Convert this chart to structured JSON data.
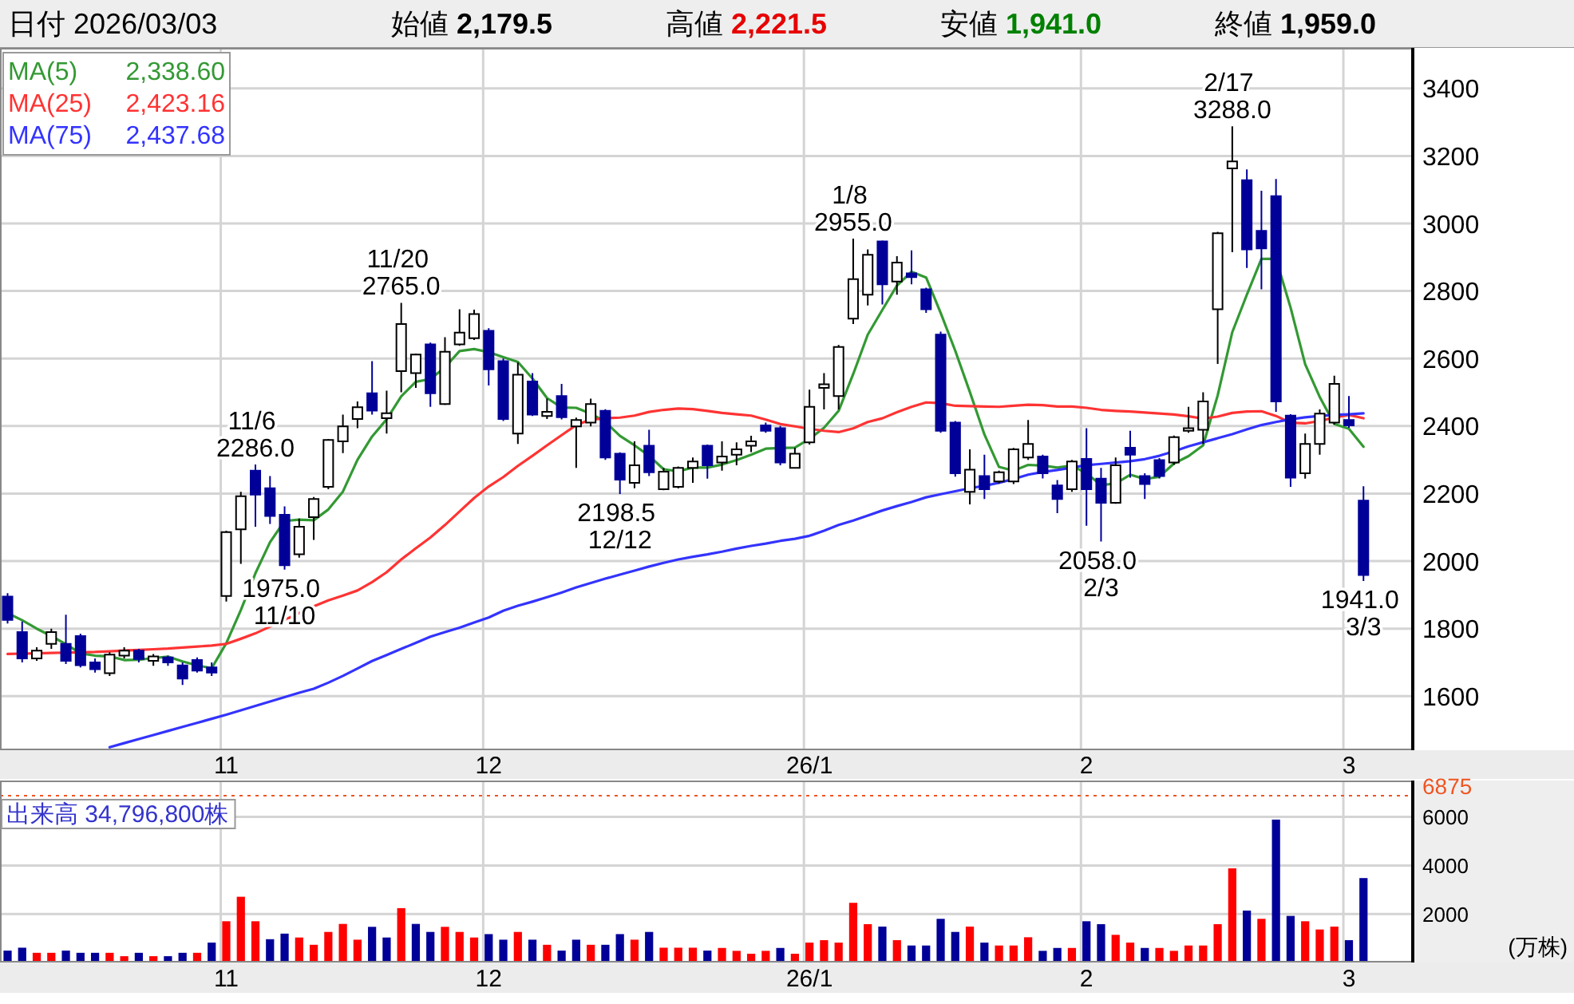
{
  "chart_data": [
    {
      "type": "candlestick",
      "title": "日付 2026/03/03",
      "categories": [
        null,
        null,
        null,
        null,
        null,
        null,
        null,
        null,
        null,
        null,
        null,
        null,
        null,
        null,
        null,
        "11",
        null,
        null,
        null,
        null,
        null,
        null,
        null,
        null,
        null,
        null,
        null,
        null,
        null,
        null,
        null,
        null,
        null,
        "12",
        null,
        null,
        null,
        null,
        null,
        null,
        null,
        null,
        null,
        null,
        null,
        null,
        null,
        null,
        null,
        null,
        null,
        null,
        null,
        null,
        null,
        "26/1",
        null,
        null,
        null,
        null,
        null,
        null,
        null,
        null,
        null,
        null,
        null,
        null,
        null,
        null,
        null,
        null,
        null,
        null,
        "2",
        null,
        null,
        null,
        null,
        null,
        null,
        null,
        null,
        null,
        null,
        null,
        null,
        null,
        null,
        null,
        null,
        null,
        "3",
        null
      ],
      "ohlc": [
        [
          1895,
          1905,
          1815,
          1826
        ],
        [
          1790,
          1821,
          1700,
          1712
        ],
        [
          1712,
          1745,
          1705,
          1735
        ],
        [
          1755,
          1800,
          1740,
          1790
        ],
        [
          1755,
          1841,
          1695,
          1705
        ],
        [
          1778,
          1785,
          1685,
          1692
        ],
        [
          1700,
          1712,
          1670,
          1680
        ],
        [
          1668,
          1730,
          1660,
          1723
        ],
        [
          1720,
          1745,
          1712,
          1735
        ],
        [
          1735,
          1740,
          1700,
          1710
        ],
        [
          1705,
          1725,
          1690,
          1718
        ],
        [
          1715,
          1720,
          1690,
          1700
        ],
        [
          1691,
          1700,
          1633,
          1652
        ],
        [
          1707,
          1715,
          1670,
          1676
        ],
        [
          1685,
          1700,
          1660,
          1670
        ],
        [
          1897,
          2090,
          1880,
          2086
        ],
        [
          2094,
          2205,
          1992,
          2192
        ],
        [
          2268,
          2286,
          2102,
          2197
        ],
        [
          2216,
          2252,
          2110,
          2134
        ],
        [
          2137,
          2162,
          1975,
          1988
        ],
        [
          2020,
          2126,
          2010,
          2102
        ],
        [
          2130,
          2190,
          2063,
          2184
        ],
        [
          2220,
          2362,
          2213,
          2359
        ],
        [
          2355,
          2434,
          2320,
          2399
        ],
        [
          2421,
          2473,
          2394,
          2456
        ],
        [
          2497,
          2592,
          2434,
          2446
        ],
        [
          2423,
          2505,
          2378,
          2438
        ],
        [
          2563,
          2765,
          2500,
          2702
        ],
        [
          2557,
          2615,
          2513,
          2612
        ],
        [
          2642,
          2647,
          2457,
          2497
        ],
        [
          2465,
          2663,
          2462,
          2620
        ],
        [
          2642,
          2746,
          2638,
          2677
        ],
        [
          2660,
          2745,
          2655,
          2732
        ],
        [
          2682,
          2690,
          2520,
          2568
        ],
        [
          2592,
          2600,
          2415,
          2421
        ],
        [
          2378,
          2588,
          2347,
          2552
        ],
        [
          2532,
          2557,
          2430,
          2434
        ],
        [
          2430,
          2481,
          2421,
          2442
        ],
        [
          2489,
          2525,
          2420,
          2426
        ],
        [
          2399,
          2425,
          2276,
          2418
        ],
        [
          2410,
          2481,
          2399,
          2465
        ],
        [
          2445,
          2450,
          2300,
          2307
        ],
        [
          2318,
          2322,
          2198.5,
          2241
        ],
        [
          2232,
          2355,
          2216,
          2284
        ],
        [
          2342,
          2389,
          2252,
          2263
        ],
        [
          2213,
          2276,
          2210,
          2265
        ],
        [
          2220,
          2280,
          2215,
          2276
        ],
        [
          2276,
          2307,
          2232,
          2295
        ],
        [
          2342,
          2345,
          2244,
          2284
        ],
        [
          2292,
          2355,
          2268,
          2310
        ],
        [
          2315,
          2352,
          2284,
          2331
        ],
        [
          2342,
          2371,
          2323,
          2355
        ],
        [
          2402,
          2410,
          2380,
          2386
        ],
        [
          2394,
          2400,
          2284,
          2292
        ],
        [
          2276,
          2336,
          2274,
          2318
        ],
        [
          2352,
          2508,
          2345,
          2457
        ],
        [
          2513,
          2557,
          2449,
          2524
        ],
        [
          2489,
          2640,
          2449,
          2634
        ],
        [
          2718,
          2955,
          2702,
          2835
        ],
        [
          2789,
          2923,
          2757,
          2907
        ],
        [
          2947,
          2950,
          2760,
          2820
        ],
        [
          2828,
          2903,
          2789,
          2884
        ],
        [
          2852,
          2920,
          2820,
          2841
        ],
        [
          2805,
          2810,
          2735,
          2746
        ],
        [
          2671,
          2680,
          2380,
          2386
        ],
        [
          2410,
          2415,
          2250,
          2260
        ],
        [
          2205,
          2331,
          2168,
          2271
        ],
        [
          2252,
          2315,
          2184,
          2213
        ],
        [
          2236,
          2268,
          2230,
          2263
        ],
        [
          2236,
          2335,
          2228,
          2331
        ],
        [
          2307,
          2418,
          2300,
          2347
        ],
        [
          2310,
          2315,
          2245,
          2260
        ],
        [
          2224,
          2240,
          2142,
          2184
        ],
        [
          2213,
          2300,
          2205,
          2295
        ],
        [
          2303,
          2394,
          2105,
          2213
        ],
        [
          2244,
          2276,
          2058,
          2173
        ],
        [
          2173,
          2307,
          2170,
          2284
        ],
        [
          2336,
          2386,
          2247,
          2315
        ],
        [
          2252,
          2260,
          2184,
          2228
        ],
        [
          2299,
          2305,
          2245,
          2252
        ],
        [
          2292,
          2372,
          2285,
          2367
        ],
        [
          2386,
          2457,
          2380,
          2394
        ],
        [
          2389,
          2500,
          2347,
          2473
        ],
        [
          2746,
          2975,
          2584,
          2971
        ],
        [
          3163,
          3288,
          2915,
          3184
        ],
        [
          3128,
          3160,
          2868,
          2923
        ],
        [
          2978,
          3097,
          2805,
          2926
        ],
        [
          3081,
          3132,
          2442,
          2473
        ],
        [
          2431,
          2435,
          2220,
          2247
        ],
        [
          2260,
          2378,
          2244,
          2347
        ],
        [
          2347,
          2449,
          2315,
          2437
        ],
        [
          2410,
          2549,
          2405,
          2525
        ],
        [
          2418,
          2489,
          2395,
          2402
        ],
        [
          2179.5,
          2221.5,
          1941.0,
          1959.0
        ]
      ],
      "colors": [
        "#000099",
        "#000099",
        "#ffffff",
        "#ffffff",
        "#000099",
        "#000099",
        "#000099",
        "#ffffff",
        "#ffffff",
        "#000099",
        "#ffffff",
        "#000099",
        "#000099",
        "#000099",
        "#000099",
        "#ffffff",
        "#ffffff",
        "#000099",
        "#000099",
        "#000099",
        "#ffffff",
        "#ffffff",
        "#ffffff",
        "#ffffff",
        "#ffffff",
        "#000099",
        "#ffffff",
        "#ffffff",
        "#ffffff",
        "#000099",
        "#ffffff",
        "#ffffff",
        "#ffffff",
        "#000099",
        "#000099",
        "#ffffff",
        "#000099",
        "#ffffff",
        "#000099",
        "#ffffff",
        "#ffffff",
        "#000099",
        "#000099",
        "#ffffff",
        "#000099",
        "#ffffff",
        "#ffffff",
        "#ffffff",
        "#000099",
        "#ffffff",
        "#ffffff",
        "#ffffff",
        "#000099",
        "#000099",
        "#ffffff",
        "#ffffff",
        "#ffffff",
        "#ffffff",
        "#ffffff",
        "#ffffff",
        "#000099",
        "#ffffff",
        "#000099",
        "#000099",
        "#000099",
        "#000099",
        "#ffffff",
        "#000099",
        "#ffffff",
        "#ffffff",
        "#ffffff",
        "#000099",
        "#000099",
        "#ffffff",
        "#000099",
        "#000099",
        "#ffffff",
        "#000099",
        "#000099",
        "#000099",
        "#ffffff",
        "#ffffff",
        "#ffffff",
        "#ffffff",
        "#ffffff",
        "#000099",
        "#000099",
        "#000099",
        "#000099",
        "#ffffff",
        "#ffffff",
        "#ffffff",
        "#000099",
        "#000099"
      ],
      "series": [
        {
          "name": "MA(5) 2,338.60",
          "type": "line",
          "color": "#339933",
          "values": [
            1846,
            1825,
            1800,
            1778,
            1754,
            1727,
            1720,
            1718,
            1707,
            1708,
            1713,
            1717,
            1703,
            1691,
            1683,
            1757,
            1855,
            1964,
            2056,
            2119,
            2123,
            2121,
            2153,
            2206,
            2300,
            2369,
            2420,
            2488,
            2531,
            2539,
            2574,
            2622,
            2628,
            2619,
            2604,
            2590,
            2541,
            2483,
            2455,
            2454,
            2437,
            2412,
            2371,
            2343,
            2312,
            2272,
            2266,
            2277,
            2277,
            2286,
            2299,
            2315,
            2333,
            2335,
            2336,
            2362,
            2395,
            2445,
            2554,
            2671,
            2744,
            2816,
            2857,
            2840,
            2735,
            2623,
            2501,
            2375,
            2279,
            2268,
            2285,
            2283,
            2277,
            2283,
            2260,
            2225,
            2230,
            2256,
            2243,
            2250,
            2289,
            2311,
            2343,
            2491,
            2678,
            2789,
            2895,
            2895,
            2751,
            2583,
            2486,
            2406,
            2392,
            2338.6
          ]
        },
        {
          "name": "MA(25) 2,423.16",
          "type": "line",
          "color": "#ff3333",
          "values": [
            1725,
            1726,
            1727,
            1728,
            1729,
            1730,
            1731,
            1733,
            1735,
            1737,
            1739,
            1741,
            1744,
            1747,
            1750,
            1755,
            1770,
            1786,
            1806,
            1826,
            1846,
            1866,
            1884,
            1898,
            1913,
            1938,
            1967,
            2005,
            2038,
            2070,
            2107,
            2147,
            2187,
            2221,
            2249,
            2282,
            2312,
            2343,
            2373,
            2403,
            2419,
            2423,
            2425,
            2431,
            2442,
            2448,
            2452,
            2450,
            2445,
            2439,
            2435,
            2431,
            2419,
            2406,
            2399,
            2392,
            2386,
            2382,
            2393,
            2412,
            2423,
            2441,
            2457,
            2470,
            2468,
            2460,
            2459,
            2458,
            2457,
            2460,
            2463,
            2462,
            2458,
            2458,
            2454,
            2448,
            2445,
            2443,
            2440,
            2437,
            2434,
            2429,
            2422,
            2428,
            2439,
            2443,
            2444,
            2430,
            2410,
            2408,
            2415,
            2425,
            2433,
            2423.16
          ]
        },
        {
          "name": "MA(75) 2,437.68",
          "type": "line",
          "color": "#3333ff",
          "values": [
            null,
            null,
            null,
            null,
            null,
            null,
            null,
            1449,
            1461,
            1473,
            1485,
            1497,
            1509,
            1521,
            1533,
            1545,
            1558,
            1571,
            1584,
            1597,
            1610,
            1622,
            1640,
            1660,
            1682,
            1704,
            1722,
            1740,
            1758,
            1776,
            1790,
            1803,
            1818,
            1833,
            1853,
            1868,
            1880,
            1893,
            1907,
            1922,
            1935,
            1948,
            1960,
            1972,
            1984,
            1995,
            2005,
            2013,
            2020,
            2028,
            2037,
            2045,
            2052,
            2060,
            2066,
            2075,
            2090,
            2107,
            2120,
            2135,
            2150,
            2163,
            2175,
            2189,
            2198,
            2207,
            2216,
            2223,
            2232,
            2243,
            2256,
            2264,
            2270,
            2277,
            2284,
            2288,
            2292,
            2296,
            2302,
            2312,
            2325,
            2340,
            2352,
            2364,
            2376,
            2390,
            2403,
            2412,
            2420,
            2426,
            2430,
            2433,
            2435,
            2437.68
          ]
        }
      ],
      "ylim": [
        1440,
        3520
      ],
      "yticks": [
        1600,
        1800,
        2000,
        2200,
        2400,
        2600,
        2800,
        3000,
        3200,
        3400
      ],
      "grid": true,
      "annotations": [
        "始値 **2,179.5**",
        "高値 **2,221.5**",
        "安値 **1,941.0**",
        "終値 **1,959.0**",
        {
          "text": "11/6 2286.0",
          "y": 2286.0
        },
        {
          "text": "1975.0 11/10",
          "y": 1975.0
        },
        {
          "text": "11/20 2765.0",
          "y": 2765.0
        },
        {
          "text": "2198.5 12/12",
          "y": 2198.5
        },
        {
          "text": "1/8 2955.0",
          "y": 2955.0
        },
        {
          "text": "2058.0 2/3",
          "y": 2058.0
        },
        {
          "text": "2/17 3288.0",
          "y": 3288.0
        },
        {
          "text": "1941.0 3/3",
          "y": 1941.0
        }
      ]
    },
    {
      "type": "bar",
      "title": "出来高 34,796,800株",
      "ylabel": "(万株)",
      "categories": [
        null,
        null,
        null,
        null,
        null,
        null,
        null,
        null,
        null,
        null,
        null,
        null,
        null,
        null,
        null,
        "11",
        null,
        null,
        null,
        null,
        null,
        null,
        null,
        null,
        null,
        null,
        null,
        null,
        null,
        null,
        null,
        null,
        null,
        "12",
        null,
        null,
        null,
        null,
        null,
        null,
        null,
        null,
        null,
        null,
        null,
        null,
        null,
        null,
        null,
        null,
        null,
        null,
        null,
        null,
        null,
        "26/1",
        null,
        null,
        null,
        null,
        null,
        null,
        null,
        null,
        null,
        null,
        null,
        null,
        null,
        null,
        null,
        null,
        null,
        null,
        "2",
        null,
        null,
        null,
        null,
        null,
        null,
        null,
        null,
        null,
        null,
        null,
        null,
        null,
        null,
        null,
        null,
        null,
        "3",
        null
      ],
      "values": [
        490,
        610,
        400,
        400,
        490,
        400,
        400,
        400,
        260,
        400,
        260,
        260,
        400,
        400,
        820,
        1700,
        2710,
        1700,
        960,
        1190,
        1030,
        730,
        1260,
        1590,
        940,
        1470,
        1030,
        2240,
        1590,
        1260,
        1470,
        1260,
        1030,
        1170,
        940,
        1260,
        940,
        730,
        490,
        940,
        730,
        730,
        1170,
        940,
        1260,
        610,
        610,
        610,
        490,
        600,
        480,
        360,
        480,
        600,
        360,
        820,
        920,
        820,
        2460,
        1580,
        1480,
        920,
        700,
        700,
        1800,
        1260,
        1480,
        820,
        700,
        700,
        1040,
        480,
        600,
        600,
        1700,
        1580,
        1140,
        820,
        600,
        600,
        480,
        700,
        700,
        1580,
        3880,
        2140,
        1800,
        5890,
        1920,
        1700,
        1360,
        1480,
        920,
        3479.68
      ],
      "colors": [
        "#000099",
        "#000099",
        "#ff0000",
        "#ff0000",
        "#000099",
        "#000099",
        "#000099",
        "#ff0000",
        "#ff0000",
        "#000099",
        "#ff0000",
        "#000099",
        "#000099",
        "#ff0000",
        "#000099",
        "#ff0000",
        "#ff0000",
        "#ff0000",
        "#000099",
        "#000099",
        "#ff0000",
        "#ff0000",
        "#ff0000",
        "#ff0000",
        "#ff0000",
        "#000099",
        "#000099",
        "#ff0000",
        "#000099",
        "#000099",
        "#ff0000",
        "#ff0000",
        "#ff0000",
        "#000099",
        "#000099",
        "#ff0000",
        "#000099",
        "#ff0000",
        "#000099",
        "#000099",
        "#ff0000",
        "#000099",
        "#000099",
        "#ff0000",
        "#000099",
        "#ff0000",
        "#ff0000",
        "#ff0000",
        "#000099",
        "#ff0000",
        "#ff0000",
        "#ff0000",
        "#ff0000",
        "#000099",
        "#ff0000",
        "#ff0000",
        "#ff0000",
        "#ff0000",
        "#ff0000",
        "#ff0000",
        "#000099",
        "#ff0000",
        "#000099",
        "#000099",
        "#000099",
        "#000099",
        "#ff0000",
        "#000099",
        "#ff0000",
        "#ff0000",
        "#ff0000",
        "#000099",
        "#000099",
        "#ff0000",
        "#000099",
        "#000099",
        "#ff0000",
        "#ff0000",
        "#000099",
        "#ff0000",
        "#ff0000",
        "#ff0000",
        "#ff0000",
        "#ff0000",
        "#ff0000",
        "#000099",
        "#ff0000",
        "#000099",
        "#000099",
        "#ff0000",
        "#ff0000",
        "#ff0000",
        "#000099",
        "#000099"
      ],
      "ylim": [
        0,
        7500
      ],
      "yticks": [
        2000,
        4000,
        6000
      ],
      "grid": true,
      "ref_lines": [
        {
          "axis": "y",
          "value": 6875,
          "label": "6875",
          "color": "#ee5522",
          "line_style": "dotted"
        }
      ]
    }
  ]
}
